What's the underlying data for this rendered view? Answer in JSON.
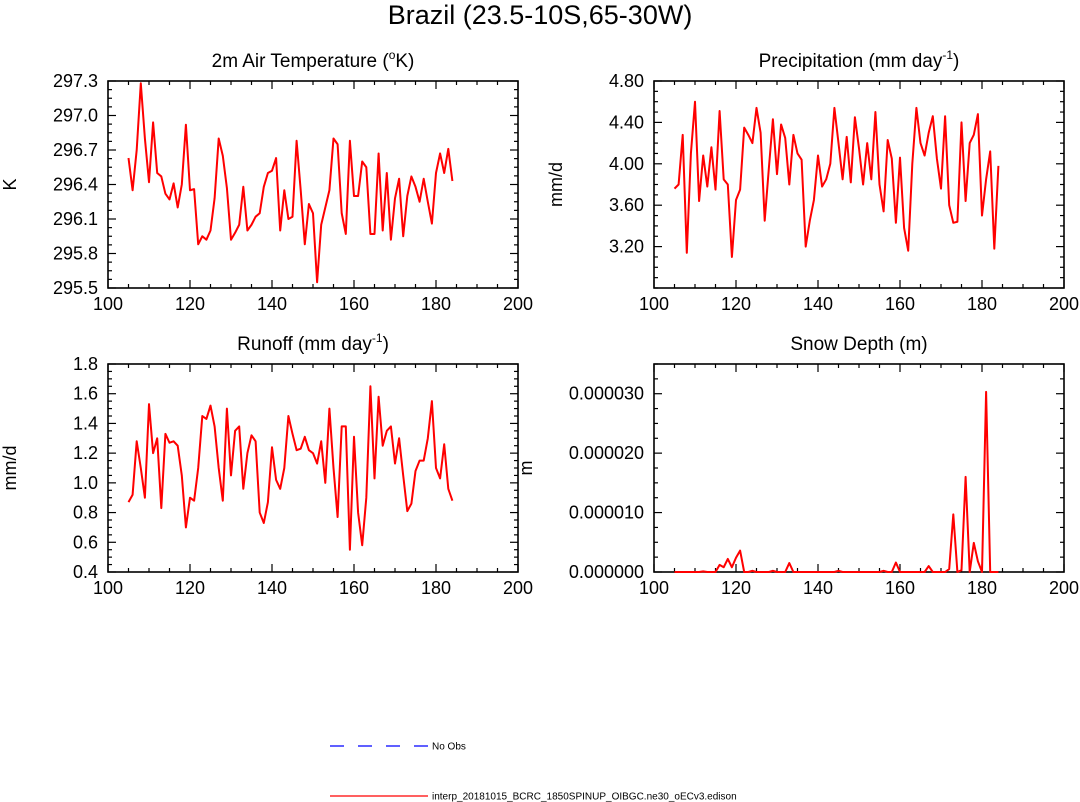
{
  "figure_title": "Brazil (23.5-10S,65-30W)",
  "chart_data": [
    {
      "type": "line",
      "title": "2m Air Temperature (°K)",
      "title_parts": [
        "2m Air Temperature (",
        "o",
        "K)"
      ],
      "xlabel": "",
      "ylabel": "K",
      "xlim": [
        100,
        200
      ],
      "ylim": [
        295.5,
        297.3
      ],
      "xticks": [
        100,
        120,
        140,
        160,
        180,
        200
      ],
      "yticks": [
        295.5,
        295.8,
        296.1,
        296.4,
        296.7,
        297.0,
        297.3
      ],
      "ytick_labels": [
        "295.5",
        "295.8",
        "296.1",
        "296.4",
        "296.7",
        "297.0",
        "297.3"
      ],
      "x_start": 105,
      "series": [
        {
          "values": [
            296.63,
            296.35,
            296.7,
            297.28,
            296.8,
            296.42,
            296.94,
            296.5,
            296.47,
            296.32,
            296.27,
            296.41,
            296.2,
            296.4,
            296.92,
            296.35,
            296.36,
            295.88,
            295.95,
            295.92,
            296.0,
            296.28,
            296.8,
            296.65,
            296.37,
            295.92,
            295.98,
            296.05,
            296.38,
            296.0,
            296.05,
            296.12,
            296.15,
            296.38,
            296.5,
            296.52,
            296.63,
            296.0,
            296.35,
            296.1,
            296.12,
            296.78,
            296.35,
            295.88,
            296.23,
            296.15,
            295.55,
            296.05,
            296.2,
            296.35,
            296.8,
            296.75,
            296.15,
            295.97,
            296.78,
            296.3,
            296.3,
            296.6,
            296.55,
            295.97,
            295.97,
            296.67,
            296.0,
            296.5,
            295.92,
            296.28,
            296.45,
            295.95,
            296.3,
            296.47,
            296.38,
            296.25,
            296.45,
            296.25,
            296.06,
            296.5,
            296.67,
            296.5,
            296.71,
            296.43
          ]
        }
      ]
    },
    {
      "type": "line",
      "title": "Precipitation (mm day-1)",
      "title_parts": [
        "Precipitation (mm day",
        "-1",
        ")"
      ],
      "xlabel": "",
      "ylabel": "mm/d",
      "xlim": [
        100,
        200
      ],
      "ylim": [
        2.8,
        4.8
      ],
      "xticks": [
        100,
        120,
        140,
        160,
        180,
        200
      ],
      "yticks": [
        3.2,
        3.6,
        4.0,
        4.4,
        4.8
      ],
      "ytick_labels": [
        "3.20",
        "3.60",
        "4.00",
        "4.40",
        "4.80"
      ],
      "x_start": 105,
      "series": [
        {
          "values": [
            3.76,
            3.8,
            4.28,
            3.14,
            4.1,
            4.6,
            3.64,
            4.08,
            3.78,
            4.16,
            3.75,
            4.51,
            3.85,
            3.8,
            3.1,
            3.65,
            3.75,
            4.35,
            4.28,
            4.2,
            4.54,
            4.3,
            3.45,
            3.95,
            4.43,
            3.9,
            4.38,
            4.25,
            3.8,
            4.28,
            4.1,
            4.04,
            3.2,
            3.45,
            3.65,
            4.08,
            3.78,
            3.85,
            4.0,
            4.54,
            4.2,
            3.85,
            4.26,
            3.82,
            4.45,
            4.15,
            3.8,
            4.2,
            3.85,
            4.5,
            3.8,
            3.54,
            4.23,
            4.05,
            3.43,
            4.06,
            3.38,
            3.16,
            4.0,
            4.54,
            4.2,
            4.08,
            4.3,
            4.46,
            4.05,
            3.76,
            4.46,
            3.6,
            3.43,
            3.44,
            4.4,
            3.64,
            4.2,
            4.28,
            4.48,
            3.5,
            3.85,
            4.12,
            3.18,
            3.98
          ]
        }
      ]
    },
    {
      "type": "line",
      "title": "Runoff (mm day-1)",
      "title_parts": [
        "Runoff (mm day",
        "-1",
        ")"
      ],
      "xlabel": "",
      "ylabel": "mm/d",
      "xlim": [
        100,
        200
      ],
      "ylim": [
        0.4,
        1.8
      ],
      "xticks": [
        100,
        120,
        140,
        160,
        180,
        200
      ],
      "yticks": [
        0.4,
        0.6,
        0.8,
        1.0,
        1.2,
        1.4,
        1.6,
        1.8
      ],
      "ytick_labels": [
        "0.4",
        "0.6",
        "0.8",
        "1.0",
        "1.2",
        "1.4",
        "1.6",
        "1.8"
      ],
      "x_start": 105,
      "series": [
        {
          "values": [
            0.87,
            0.92,
            1.28,
            1.1,
            0.9,
            1.53,
            1.2,
            1.3,
            0.83,
            1.33,
            1.27,
            1.28,
            1.25,
            1.05,
            0.7,
            0.9,
            0.88,
            1.1,
            1.45,
            1.43,
            1.52,
            1.38,
            1.1,
            0.88,
            1.5,
            1.05,
            1.35,
            1.38,
            0.96,
            1.2,
            1.32,
            1.28,
            0.8,
            0.73,
            0.87,
            1.24,
            1.02,
            0.96,
            1.1,
            1.45,
            1.33,
            1.22,
            1.23,
            1.31,
            1.22,
            1.2,
            1.13,
            1.28,
            1.0,
            1.5,
            1.1,
            0.77,
            1.38,
            1.38,
            0.55,
            1.31,
            0.8,
            0.58,
            0.9,
            1.65,
            1.03,
            1.58,
            1.25,
            1.35,
            1.38,
            1.13,
            1.3,
            1.05,
            0.81,
            0.86,
            1.08,
            1.15,
            1.15,
            1.3,
            1.55,
            1.1,
            1.03,
            1.26,
            0.96,
            0.88
          ]
        }
      ]
    },
    {
      "type": "line",
      "title": "Snow Depth (m)",
      "title_parts": [
        "Snow Depth (m)"
      ],
      "xlabel": "",
      "ylabel": "m",
      "xlim": [
        100,
        200
      ],
      "ylim": [
        0,
        3.5e-05
      ],
      "xticks": [
        100,
        120,
        140,
        160,
        180,
        200
      ],
      "yticks": [
        0,
        1e-05,
        2e-05,
        3e-05
      ],
      "ytick_labels": [
        "0.000000",
        "0.000010",
        "0.000020",
        "0.000030"
      ],
      "x_start": 105,
      "series": [
        {
          "values": [
            0,
            0,
            0,
            0,
            0,
            0,
            0,
            1e-07,
            0,
            0,
            0,
            1.2e-06,
            8e-07,
            2.2e-06,
            8e-07,
            2.4e-06,
            3.6e-06,
            0,
            0,
            2e-07,
            0,
            0,
            0,
            0,
            2e-07,
            0,
            0,
            0,
            1.5e-06,
            0,
            0,
            0,
            0,
            0,
            0,
            0,
            0,
            0,
            0,
            0,
            2e-07,
            0,
            0,
            0,
            0,
            0,
            0,
            0,
            0,
            0,
            0,
            2e-07,
            0,
            0,
            1.6e-06,
            0,
            0,
            0,
            0,
            0,
            0,
            0,
            1e-06,
            0,
            0,
            0,
            0,
            5e-07,
            9.7e-06,
            0,
            3e-07,
            1.6e-05,
            0,
            4.9e-06,
            1.8e-06,
            0,
            3.03e-05,
            0,
            0,
            0
          ]
        }
      ]
    }
  ],
  "legend": [
    {
      "label": "No Obs",
      "color": "#0000ff",
      "style": "dashed"
    },
    {
      "label": "interp_20181015_BCRC_1850SPINUP_OIBGC.ne30_oECv3.edison",
      "color": "#ff0000",
      "style": "solid"
    }
  ]
}
